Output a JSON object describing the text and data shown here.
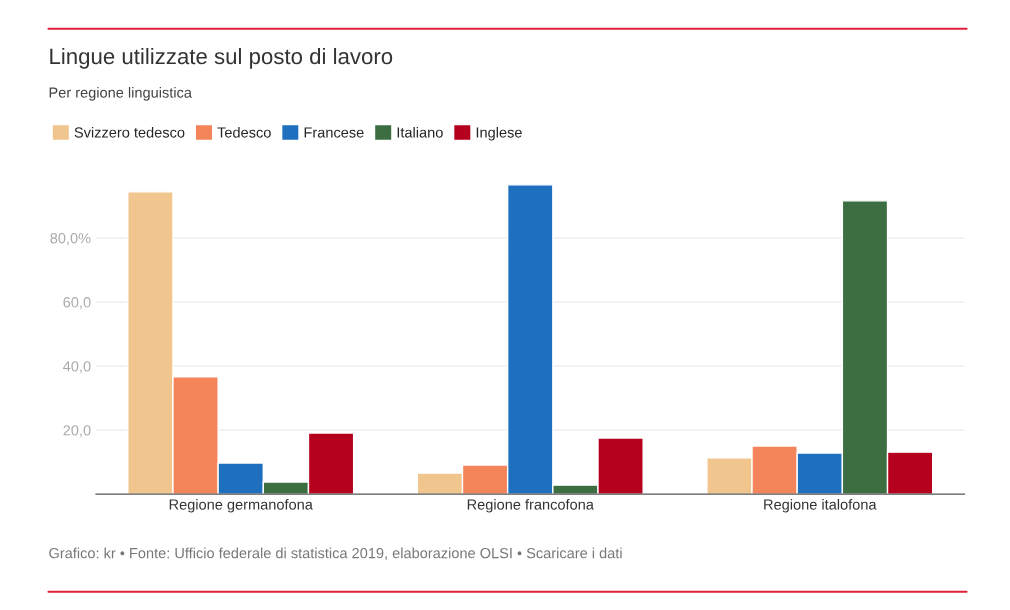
{
  "chart_data": {
    "type": "bar",
    "title": "Lingue utilizzate sul posto di lavoro",
    "subtitle": "Per regione linguistica",
    "categories": [
      "Regione germanofona",
      "Regione francofona",
      "Regione italofona"
    ],
    "series": [
      {
        "name": "Svizzero tedesco",
        "color": "#f0c58e",
        "values": [
          94.4,
          6.6,
          11.3
        ]
      },
      {
        "name": "Tedesco",
        "color": "#f4845a",
        "values": [
          36.6,
          9.1,
          15.0
        ]
      },
      {
        "name": "Francese",
        "color": "#1f6fbf",
        "values": [
          9.7,
          96.6,
          12.8
        ]
      },
      {
        "name": "Italiano",
        "color": "#3d6e42",
        "values": [
          3.8,
          2.8,
          91.6
        ]
      },
      {
        "name": "Inglese",
        "color": "#b5001e",
        "values": [
          19.1,
          17.5,
          13.1
        ]
      }
    ],
    "ylim": [
      0,
      96.6
    ],
    "yticks": [
      {
        "value": 20,
        "label": "20,0"
      },
      {
        "value": 40,
        "label": "40,0"
      },
      {
        "value": 60,
        "label": "60,0"
      },
      {
        "value": 80,
        "label": "80,0%"
      }
    ],
    "grid": "y",
    "legend": "top left",
    "annotations": [
      "Grafico: kr • Fonte: Ufficio federale di statistica 2019, elaborazione OLSI • Scaricare i dati"
    ]
  }
}
